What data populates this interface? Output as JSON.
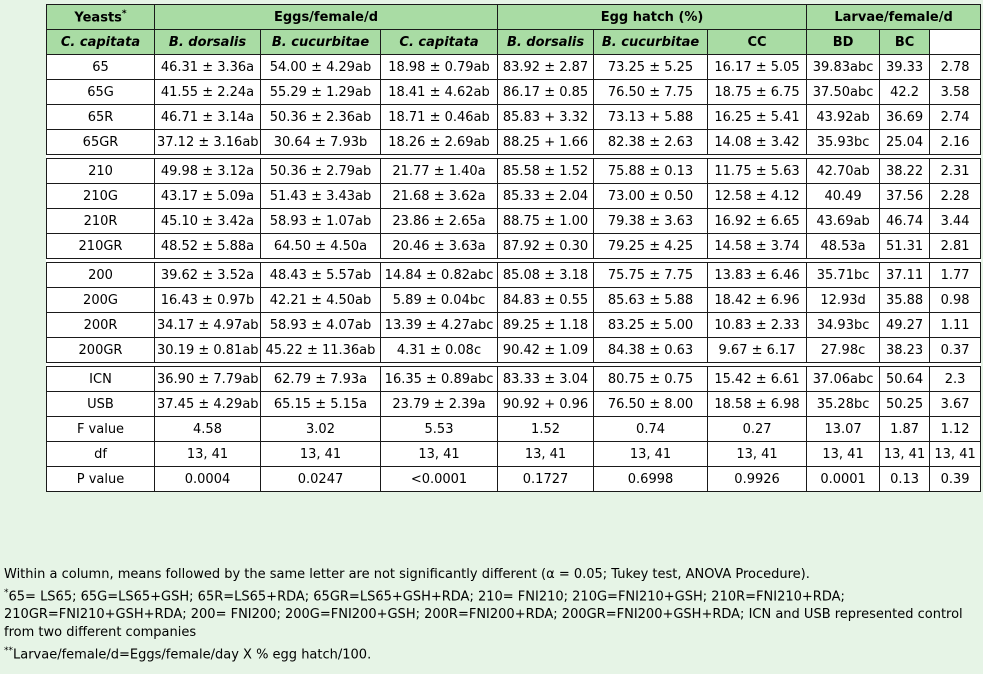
{
  "header": {
    "yeasts": "Yeasts",
    "yeasts_mark": "*",
    "eggs": "Eggs/female/d",
    "hatch": "Egg hatch (%)",
    "larvae": "Larvae/female/d",
    "sub": [
      "C. capitata",
      "B. dorsalis",
      "B. cucurbitae",
      "C. capitata",
      "B. dorsalis",
      "B. cucurbitae",
      "CC",
      "BD",
      "BC"
    ]
  },
  "groups": [
    [
      [
        "65",
        "46.31 ± 3.36a",
        "54.00 ± 4.29ab",
        "18.98 ± 0.79ab",
        "83.92 ± 2.87",
        "73.25 ± 5.25",
        "16.17 ± 5.05",
        "39.83abc",
        "39.33",
        "2.78"
      ],
      [
        "65G",
        "41.55 ± 2.24a",
        "55.29 ± 1.29ab",
        "18.41 ± 4.62ab",
        "86.17 ± 0.85",
        "76.50 ± 7.75",
        "18.75 ± 6.75",
        "37.50abc",
        "42.2",
        "3.58"
      ],
      [
        "65R",
        "46.71 ± 3.14a",
        "50.36 ± 2.36ab",
        "18.71 ± 0.46ab",
        "85.83 + 3.32",
        "73.13 + 5.88",
        "16.25 ± 5.41",
        "43.92ab",
        "36.69",
        "2.74"
      ],
      [
        "65GR",
        "37.12 ± 3.16ab",
        "30.64 ± 7.93b",
        "18.26 ± 2.69ab",
        "88.25 + 1.66",
        "82.38 ± 2.63",
        "14.08 ± 3.42",
        "35.93bc",
        "25.04",
        "2.16"
      ]
    ],
    [
      [
        "210",
        "49.98 ± 3.12a",
        "50.36 ± 2.79ab",
        "21.77 ± 1.40a",
        "85.58 ± 1.52",
        "75.88 ± 0.13",
        "11.75 ± 5.63",
        "42.70ab",
        "38.22",
        "2.31"
      ],
      [
        "210G",
        "43.17 ± 5.09a",
        "51.43 ± 3.43ab",
        "21.68 ± 3.62a",
        "85.33 ± 2.04",
        "73.00 ± 0.50",
        "12.58 ± 4.12",
        "40.49",
        "37.56",
        "2.28"
      ],
      [
        "210R",
        "45.10 ± 3.42a",
        "58.93 ± 1.07ab",
        "23.86 ± 2.65a",
        "88.75 ± 1.00",
        "79.38 ± 3.63",
        "16.92 ± 6.65",
        "43.69ab",
        "46.74",
        "3.44"
      ],
      [
        "210GR",
        "48.52 ± 5.88a",
        "64.50 ± 4.50a",
        "20.46 ± 3.63a",
        "87.92 ± 0.30",
        "79.25 ± 4.25",
        "14.58 ± 3.74",
        "48.53a",
        "51.31",
        "2.81"
      ]
    ],
    [
      [
        "200",
        "39.62 ± 3.52a",
        "48.43 ± 5.57ab",
        "14.84 ± 0.82abc",
        "85.08 ± 3.18",
        "75.75 ± 7.75",
        "13.83 ± 6.46",
        "35.71bc",
        "37.11",
        "1.77"
      ],
      [
        "200G",
        "16.43 ± 0.97b",
        "42.21 ± 4.50ab",
        "5.89 ± 0.04bc",
        "84.83 ± 0.55",
        "85.63 ± 5.88",
        "18.42 ± 6.96",
        "12.93d",
        "35.88",
        "0.98"
      ],
      [
        "200R",
        "34.17 ± 4.97ab",
        "58.93 ± 4.07ab",
        "13.39 ± 4.27abc",
        "89.25 ± 1.18",
        "83.25 ± 5.00",
        "10.83 ± 2.33",
        "34.93bc",
        "49.27",
        "1.11"
      ],
      [
        "200GR",
        "30.19 ± 0.81ab",
        "45.22 ± 11.36ab",
        "4.31 ± 0.08c",
        "90.42 ± 1.09",
        "84.38 ± 0.63",
        "9.67 ± 6.17",
        "27.98c",
        "38.23",
        "0.37"
      ]
    ],
    [
      [
        "ICN",
        "36.90 ± 7.79ab",
        "62.79 ± 7.93a",
        "16.35 ± 0.89abc",
        "83.33 ± 3.04",
        "80.75 ± 0.75",
        "15.42 ± 6.61",
        "37.06abc",
        "50.64",
        "2.3"
      ],
      [
        "USB",
        "37.45 ± 4.29ab",
        "65.15 ± 5.15a",
        "23.79 ± 2.39a",
        "90.92 + 0.96",
        "76.50 ± 8.00",
        "18.58 ± 6.98",
        "35.28bc",
        "50.25",
        "3.67"
      ],
      [
        "F value",
        "4.58",
        "3.02",
        "5.53",
        "1.52",
        "0.74",
        "0.27",
        "13.07",
        "1.87",
        "1.12"
      ],
      [
        "df",
        "13, 41",
        "13, 41",
        "13, 41",
        "13, 41",
        "13, 41",
        "13, 41",
        "13, 41",
        "13, 41",
        "13, 41"
      ],
      [
        "P value",
        "0.0004",
        "0.0247",
        "<0.0001",
        "0.1727",
        "0.6998",
        "0.9926",
        "0.0001",
        "0.13",
        "0.39"
      ]
    ]
  ],
  "notes": {
    "line1": "Within a column, means followed by the same letter are not significantly different (α = 0.05; Tukey test, ANOVA Procedure).",
    "mark2": "*",
    "line2": "65= LS65; 65G=LS65+GSH; 65R=LS65+RDA; 65GR=LS65+GSH+RDA; 210= FNI210; 210G=FNI210+GSH; 210R=FNI210+RDA; 210GR=FNI210+GSH+RDA; 200= FNI200; 200G=FNI200+GSH; 200R=FNI200+RDA; 200GR=FNI200+GSH+RDA; ICN and USB represented control from two different companies",
    "mark3": "**",
    "line3": "Larvae/female/d=Eggs/female/day X % egg hatch/100."
  }
}
